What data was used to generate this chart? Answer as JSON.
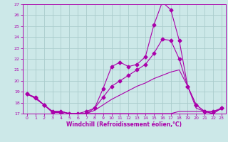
{
  "xlabel": "Windchill (Refroidissement éolien,°C)",
  "xlim": [
    -0.5,
    23.5
  ],
  "ylim": [
    17,
    27
  ],
  "yticks": [
    17,
    18,
    19,
    20,
    21,
    22,
    23,
    24,
    25,
    26,
    27
  ],
  "xticks": [
    0,
    1,
    2,
    3,
    4,
    5,
    6,
    7,
    8,
    9,
    10,
    11,
    12,
    13,
    14,
    15,
    16,
    17,
    18,
    19,
    20,
    21,
    22,
    23
  ],
  "background_color": "#cce8e8",
  "grid_color": "#aacccc",
  "line_color": "#aa00aa",
  "series": [
    {
      "x": [
        0,
        1,
        2,
        3,
        4,
        5,
        6,
        7,
        8,
        9,
        10,
        11,
        12,
        13,
        14,
        15,
        16,
        17,
        18,
        19,
        20,
        21,
        22,
        23
      ],
      "y": [
        18.8,
        18.5,
        17.8,
        17.1,
        17.1,
        16.8,
        16.7,
        17.0,
        17.5,
        19.3,
        21.3,
        21.7,
        21.3,
        21.5,
        22.2,
        25.1,
        27.2,
        26.5,
        23.7,
        19.5,
        17.8,
        17.2,
        17.2,
        17.5
      ],
      "marker": "D",
      "markersize": 2.5
    },
    {
      "x": [
        0,
        1,
        2,
        3,
        4,
        5,
        6,
        7,
        8,
        9,
        10,
        11,
        12,
        13,
        14,
        15,
        16,
        17,
        18,
        19,
        20,
        21,
        22,
        23
      ],
      "y": [
        18.8,
        18.4,
        17.8,
        17.2,
        17.2,
        17.0,
        17.0,
        17.2,
        17.5,
        18.5,
        19.5,
        20.0,
        20.5,
        21.0,
        21.5,
        22.5,
        23.8,
        23.7,
        22.0,
        19.5,
        17.8,
        17.2,
        17.0,
        17.5
      ],
      "marker": "D",
      "markersize": 2.5
    },
    {
      "x": [
        0,
        1,
        2,
        3,
        4,
        5,
        6,
        7,
        8,
        9,
        10,
        11,
        12,
        13,
        14,
        15,
        16,
        17,
        18,
        19,
        20,
        21,
        22,
        23
      ],
      "y": [
        18.8,
        18.4,
        17.8,
        17.2,
        17.2,
        17.0,
        17.0,
        17.0,
        17.3,
        17.8,
        18.3,
        18.7,
        19.1,
        19.5,
        19.8,
        20.2,
        20.5,
        20.8,
        21.0,
        19.5,
        17.5,
        17.2,
        17.0,
        17.5
      ],
      "marker": null,
      "markersize": 0
    },
    {
      "x": [
        0,
        1,
        2,
        3,
        4,
        5,
        6,
        7,
        8,
        9,
        10,
        11,
        12,
        13,
        14,
        15,
        16,
        17,
        18,
        19,
        20,
        21,
        22,
        23
      ],
      "y": [
        18.8,
        18.4,
        17.8,
        17.2,
        17.2,
        17.0,
        17.0,
        17.0,
        17.0,
        17.0,
        17.0,
        17.0,
        17.0,
        17.0,
        17.0,
        17.0,
        17.0,
        17.0,
        17.2,
        17.2,
        17.2,
        17.2,
        17.2,
        17.4
      ],
      "marker": null,
      "markersize": 0
    }
  ]
}
